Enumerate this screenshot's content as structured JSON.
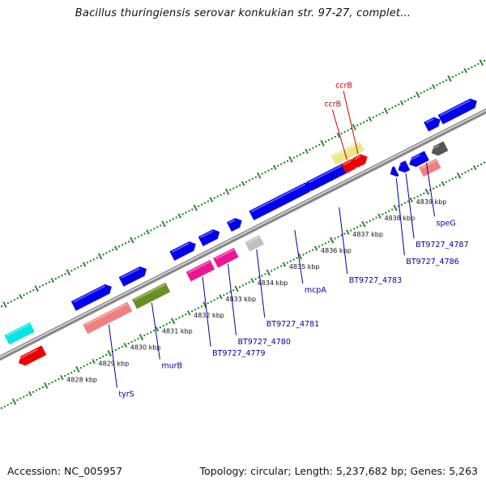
{
  "title": "Bacillus thuringiensis serovar konkukian str. 97-27, complet...",
  "footer": {
    "accession": "Accession: NC_005957",
    "summary": "Topology: circular; Length: 5,237,682 bp; Genes: 5,263"
  },
  "ticks": [
    {
      "label": "4828 kbp",
      "pos": 4828
    },
    {
      "label": "4829 kbp",
      "pos": 4829
    },
    {
      "label": "4830 kbp",
      "pos": 4830
    },
    {
      "label": "4831 kbp",
      "pos": 4831
    },
    {
      "label": "4832 kbp",
      "pos": 4832
    },
    {
      "label": "4833 kbp",
      "pos": 4833
    },
    {
      "label": "4834 kbp",
      "pos": 4834
    },
    {
      "label": "4835 kbp",
      "pos": 4835
    },
    {
      "label": "4836 kbp",
      "pos": 4836
    },
    {
      "label": "4837 kbp",
      "pos": 4837
    },
    {
      "label": "4838 kbp",
      "pos": 4838
    },
    {
      "label": "4839 kbp",
      "pos": 4839
    }
  ],
  "colors": {
    "blue": "#0000ee",
    "cyan": "#00e5e5",
    "red": "#ee0000",
    "pink": "#f08080",
    "magenta": "#ee1493",
    "olive": "#6b8e23",
    "khaki": "#eee68c",
    "gray": "#c0c0c0",
    "darkgray": "#555555"
  },
  "features": [
    {
      "start": 4826.6,
      "end": 4827.4,
      "lane": 1,
      "color": "cyan"
    },
    {
      "start": 4826.6,
      "end": 4827.4,
      "lane": -1,
      "color": "red"
    },
    {
      "start": 4828.7,
      "end": 4829.9,
      "lane": 1,
      "color": "blue"
    },
    {
      "start": 4828.7,
      "end": 4830.1,
      "lane": -1,
      "color": "pink"
    },
    {
      "start": 4830.2,
      "end": 4831.0,
      "lane": 1,
      "color": "blue"
    },
    {
      "start": 4830.25,
      "end": 4831.3,
      "lane": -1,
      "color": "olive"
    },
    {
      "start": 4831.8,
      "end": 4832.55,
      "lane": 1,
      "color": "blue"
    },
    {
      "start": 4831.95,
      "end": 4832.7,
      "lane": -1,
      "color": "magenta"
    },
    {
      "start": 4832.7,
      "end": 4833.3,
      "lane": 1,
      "color": "blue"
    },
    {
      "start": 4832.8,
      "end": 4833.45,
      "lane": -1,
      "color": "magenta"
    },
    {
      "start": 4833.6,
      "end": 4834.0,
      "lane": 1,
      "color": "blue"
    },
    {
      "start": 4833.8,
      "end": 4834.25,
      "lane": -1,
      "color": "gray"
    },
    {
      "start": 4834.3,
      "end": 4836.2,
      "lane": 1,
      "color": "blue"
    },
    {
      "start": 4836.1,
      "end": 4837.35,
      "lane": 1,
      "color": "blue"
    },
    {
      "start": 4837.05,
      "end": 4837.95,
      "lane": 2,
      "color": "khaki"
    },
    {
      "start": 4837.2,
      "end": 4837.65,
      "lane": 1,
      "color": "red"
    },
    {
      "start": 4837.55,
      "end": 4837.95,
      "lane": 1,
      "color": "red"
    },
    {
      "start": 4838.3,
      "end": 4838.5,
      "lane": -1,
      "color": "blue"
    },
    {
      "start": 4838.55,
      "end": 4838.85,
      "lane": -1,
      "color": "blue"
    },
    {
      "start": 4838.9,
      "end": 4839.45,
      "lane": -1,
      "color": "blue"
    },
    {
      "start": 4839.1,
      "end": 4839.65,
      "lane": -2,
      "color": "pink"
    },
    {
      "start": 4839.6,
      "end": 4840.05,
      "lane": -1,
      "color": "darkgray"
    },
    {
      "start": 4839.8,
      "end": 4840.25,
      "lane": 1,
      "color": "blue"
    },
    {
      "start": 4840.25,
      "end": 4841.4,
      "lane": 1,
      "color": "blue"
    }
  ],
  "gene_labels": [
    {
      "text": "tyrS",
      "gene_pos": 4829.35,
      "side": "below",
      "off": 78,
      "color": "blue"
    },
    {
      "text": "murB",
      "gene_pos": 4830.7,
      "side": "below",
      "off": 70,
      "color": "blue"
    },
    {
      "text": "BT9727_4779",
      "gene_pos": 4832.3,
      "side": "below",
      "off": 86,
      "color": "blue"
    },
    {
      "text": "BT9727_4780",
      "gene_pos": 4833.1,
      "side": "below",
      "off": 88,
      "color": "blue"
    },
    {
      "text": "BT9727_4781",
      "gene_pos": 4834.0,
      "side": "below",
      "off": 84,
      "color": "blue"
    },
    {
      "text": "mcpA",
      "gene_pos": 4835.2,
      "side": "below",
      "off": 66,
      "color": "blue"
    },
    {
      "text": "BT9727_4783",
      "gene_pos": 4836.6,
      "side": "below",
      "off": 82,
      "color": "blue"
    },
    {
      "text": "BT9727_4786",
      "gene_pos": 4838.4,
      "side": "below",
      "off": 95,
      "color": "blue"
    },
    {
      "text": "BT9727_4787",
      "gene_pos": 4838.7,
      "side": "below",
      "off": 80,
      "color": "blue"
    },
    {
      "text": "speG",
      "gene_pos": 4839.35,
      "side": "below",
      "off": 66,
      "color": "blue"
    },
    {
      "text": "ccrB",
      "gene_pos": 4837.4,
      "side": "above",
      "off": 62,
      "color": "red"
    },
    {
      "text": "ccrB",
      "gene_pos": 4837.75,
      "side": "above",
      "off": 78,
      "color": "red"
    }
  ]
}
